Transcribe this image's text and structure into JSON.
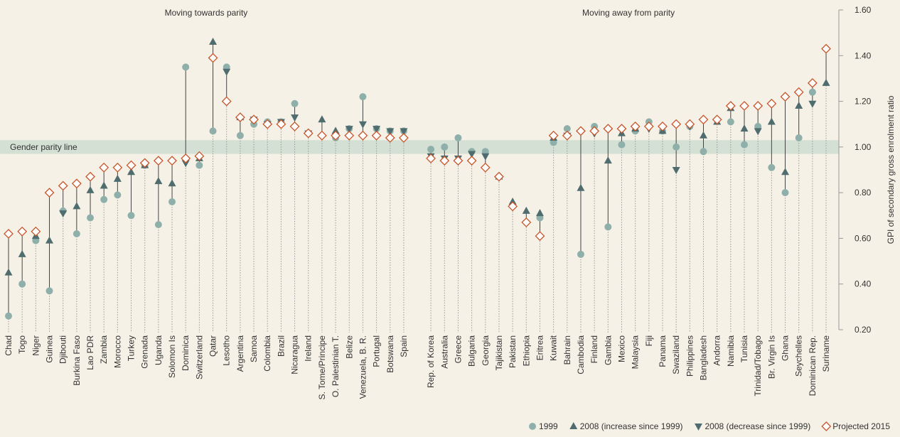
{
  "chart_data": {
    "type": "dot-range",
    "y_label": "GPI of secondary gross enrolment ratio",
    "group_labels": [
      "Moving towards parity",
      "Moving away from parity"
    ],
    "band_label": "Gender parity line",
    "band": [
      0.97,
      1.03
    ],
    "ylim": [
      0.2,
      1.6
    ],
    "yticks": [
      {
        "value": 0.2,
        "label": "0.20"
      },
      {
        "value": 0.4,
        "label": "0.40"
      },
      {
        "value": 0.6,
        "label": "0.60"
      },
      {
        "value": 0.8,
        "label": "0.80"
      },
      {
        "value": 1.0,
        "label": "1.00"
      },
      {
        "value": 1.2,
        "label": "1.20"
      },
      {
        "value": 1.4,
        "label": "1.40"
      },
      {
        "value": 1.6,
        "label": "1.60"
      }
    ],
    "group_sizes": [
      30,
      30
    ],
    "categories": [
      "Chad",
      "Togo",
      "Niger",
      "Guinea",
      "Djibouti",
      "Burkina Faso",
      "Lao PDR",
      "Zambia",
      "Morocco",
      "Turkey",
      "Grenada",
      "Uganda",
      "Solomon Is",
      "Dominica",
      "Switzerland",
      "Qatar",
      "Lesotho",
      "Argentina",
      "Samoa",
      "Colombia",
      "Brazil",
      "Nicaragua",
      "Ireland",
      "S. Tome/Principe",
      "O. Palestinian T.",
      "Belize",
      "Venezuela, B. R.",
      "Portugal",
      "Botswana",
      "Spain",
      "Rep. of Korea",
      "Australia",
      "Greece",
      "Bulgaria",
      "Georgia",
      "Tajikistan",
      "Pakistan",
      "Ethiopia",
      "Eritrea",
      "Kuwait",
      "Bahrain",
      "Cambodia",
      "Finland",
      "Gambia",
      "Mexico",
      "Malaysia",
      "Fiji",
      "Panama",
      "Swaziland",
      "Philippines",
      "Bangladesh",
      "Andorra",
      "Namibia",
      "Tunisia",
      "Trinidad/Tobago",
      "Br. Virgin Is",
      "Ghana",
      "Seychelles",
      "Dominican Rep.",
      "Suriname"
    ],
    "series": [
      {
        "name": "1999",
        "marker": "circle",
        "color": "#8fb0aa",
        "values": [
          0.26,
          0.4,
          0.59,
          0.37,
          0.72,
          0.62,
          0.69,
          0.77,
          0.79,
          0.7,
          0.92,
          0.66,
          0.76,
          1.35,
          0.92,
          1.07,
          1.35,
          1.05,
          1.1,
          1.11,
          1.11,
          1.19,
          1.06,
          null,
          1.04,
          1.08,
          1.22,
          1.08,
          1.07,
          1.07,
          0.99,
          1.0,
          1.04,
          0.98,
          0.98,
          0.87,
          null,
          0.67,
          0.69,
          1.02,
          1.08,
          0.53,
          1.09,
          0.65,
          1.01,
          1.07,
          1.11,
          1.07,
          1.0,
          1.09,
          0.98,
          null,
          1.11,
          1.01,
          1.09,
          0.91,
          0.8,
          1.04,
          1.24,
          null
        ]
      },
      {
        "name": "2008 (increase since 1999)",
        "marker": "up",
        "color": "#4f6d6e",
        "values": [
          0.45,
          0.53,
          0.61,
          0.59,
          null,
          0.74,
          0.81,
          0.83,
          0.86,
          0.89,
          0.92,
          0.85,
          0.84,
          null,
          0.95,
          1.46,
          null,
          1.13,
          null,
          null,
          null,
          null,
          null,
          1.12,
          1.07,
          null,
          null,
          null,
          null,
          null,
          null,
          null,
          null,
          null,
          null,
          0.87,
          0.76,
          0.72,
          0.71,
          1.04,
          null,
          0.82,
          null,
          0.94,
          1.06,
          1.08,
          null,
          1.07,
          null,
          null,
          1.05,
          1.11,
          1.17,
          1.08,
          null,
          1.11,
          0.89,
          1.18,
          null,
          1.28
        ]
      },
      {
        "name": "2008 (decrease since 1999)",
        "marker": "down",
        "color": "#4f6d6e",
        "values": [
          null,
          null,
          null,
          null,
          0.71,
          null,
          null,
          null,
          null,
          null,
          null,
          null,
          null,
          0.93,
          null,
          null,
          1.33,
          null,
          1.12,
          1.1,
          1.11,
          1.13,
          1.06,
          null,
          null,
          1.08,
          1.1,
          1.08,
          1.07,
          1.07,
          0.96,
          0.95,
          0.95,
          0.97,
          0.96,
          null,
          null,
          null,
          null,
          null,
          1.05,
          null,
          1.06,
          null,
          null,
          null,
          1.08,
          null,
          0.9,
          1.09,
          null,
          null,
          null,
          null,
          1.07,
          null,
          null,
          null,
          1.19,
          null
        ]
      },
      {
        "name": "Projected 2015",
        "marker": "diamond",
        "color": "#c8552a",
        "values": [
          0.62,
          0.63,
          0.63,
          0.8,
          0.83,
          0.84,
          0.87,
          0.91,
          0.91,
          0.92,
          0.93,
          0.94,
          0.94,
          0.95,
          0.96,
          1.39,
          1.2,
          1.13,
          1.12,
          1.1,
          1.1,
          1.09,
          1.06,
          1.05,
          1.05,
          1.05,
          1.05,
          1.05,
          1.04,
          1.04,
          0.95,
          0.94,
          0.94,
          0.94,
          0.91,
          0.87,
          0.74,
          0.67,
          0.61,
          1.05,
          1.05,
          1.07,
          1.07,
          1.08,
          1.08,
          1.09,
          1.09,
          1.09,
          1.1,
          1.1,
          1.12,
          1.12,
          1.18,
          1.18,
          1.18,
          1.19,
          1.22,
          1.24,
          1.28,
          1.43
        ]
      }
    ]
  }
}
